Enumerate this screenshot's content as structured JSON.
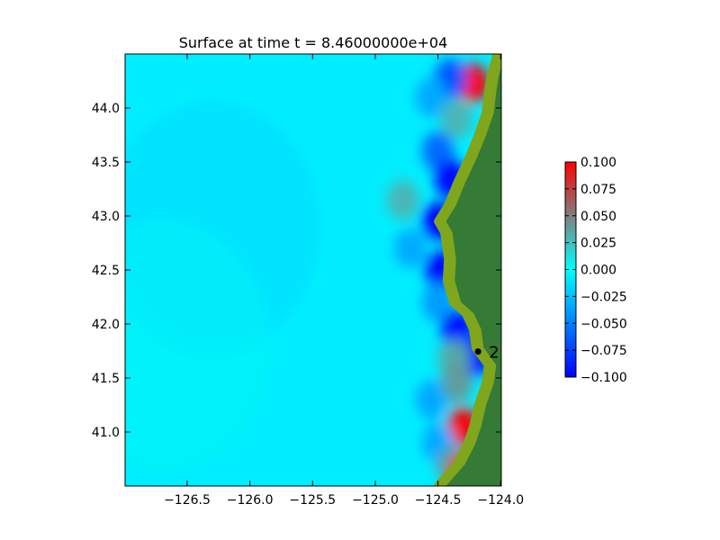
{
  "chart_data": {
    "type": "heatmap",
    "title": "Surface at time t = 8.46000000e+04",
    "xlabel": "",
    "ylabel": "",
    "xlim": [
      -126.995,
      -123.995
    ],
    "ylim": [
      40.5,
      44.5
    ],
    "x_ticks": [
      {
        "value": -126.5,
        "label": "−126.5"
      },
      {
        "value": -126.0,
        "label": "−126.0"
      },
      {
        "value": -125.5,
        "label": "−125.5"
      },
      {
        "value": -125.0,
        "label": "−125.0"
      },
      {
        "value": -124.5,
        "label": "−124.5"
      },
      {
        "value": -124.0,
        "label": "−124.0"
      }
    ],
    "y_ticks": [
      {
        "value": 41.0,
        "label": "41.0"
      },
      {
        "value": 41.5,
        "label": "41.5"
      },
      {
        "value": 42.0,
        "label": "42.0"
      },
      {
        "value": 42.5,
        "label": "42.5"
      },
      {
        "value": 43.0,
        "label": "43.0"
      },
      {
        "value": 43.5,
        "label": "43.5"
      },
      {
        "value": 44.0,
        "label": "44.0"
      }
    ],
    "colorbar": {
      "min": -0.1,
      "max": 0.1,
      "ticks": [
        {
          "value": 0.1,
          "label": "0.100"
        },
        {
          "value": 0.075,
          "label": "0.075"
        },
        {
          "value": 0.05,
          "label": "0.050"
        },
        {
          "value": 0.025,
          "label": "0.025"
        },
        {
          "value": 0.0,
          "label": "0.000"
        },
        {
          "value": -0.025,
          "label": "−0.025"
        },
        {
          "value": -0.05,
          "label": "−0.050"
        },
        {
          "value": -0.075,
          "label": "−0.075"
        },
        {
          "value": -0.1,
          "label": "−0.100"
        }
      ],
      "colors": [
        "#0000ff",
        "#00ffff",
        "#ff0000"
      ]
    },
    "colors": {
      "land": "#357a35",
      "shore": "#7fa61c",
      "water_base": "#00f0ff",
      "marker": "#000000"
    },
    "coastline": [
      [
        -124.5,
        40.5
      ],
      [
        -124.35,
        40.7
      ],
      [
        -124.27,
        40.88
      ],
      [
        -124.22,
        41.05
      ],
      [
        -124.18,
        41.25
      ],
      [
        -124.12,
        41.45
      ],
      [
        -124.1,
        41.62
      ],
      [
        -124.2,
        41.78
      ],
      [
        -124.22,
        41.95
      ],
      [
        -124.28,
        42.1
      ],
      [
        -124.38,
        42.2
      ],
      [
        -124.43,
        42.4
      ],
      [
        -124.42,
        42.6
      ],
      [
        -124.45,
        42.85
      ],
      [
        -124.5,
        42.95
      ],
      [
        -124.42,
        43.1
      ],
      [
        -124.35,
        43.3
      ],
      [
        -124.25,
        43.55
      ],
      [
        -124.18,
        43.75
      ],
      [
        -124.12,
        43.95
      ],
      [
        -124.1,
        44.15
      ],
      [
        -124.08,
        44.3
      ],
      [
        -124.03,
        44.5
      ]
    ],
    "features": [
      {
        "lon": -124.22,
        "lat": 44.23,
        "value": 0.1
      },
      {
        "lon": -124.4,
        "lat": 44.27,
        "value": -0.07
      },
      {
        "lon": -124.55,
        "lat": 44.1,
        "value": -0.035
      },
      {
        "lon": -124.35,
        "lat": 43.9,
        "value": 0.03
      },
      {
        "lon": -124.5,
        "lat": 43.6,
        "value": -0.06
      },
      {
        "lon": -124.4,
        "lat": 43.35,
        "value": -0.1
      },
      {
        "lon": -124.78,
        "lat": 43.15,
        "value": 0.03
      },
      {
        "lon": -124.5,
        "lat": 42.95,
        "value": -0.1
      },
      {
        "lon": -124.72,
        "lat": 42.7,
        "value": -0.035
      },
      {
        "lon": -124.48,
        "lat": 42.5,
        "value": -0.1
      },
      {
        "lon": -124.5,
        "lat": 42.2,
        "value": -0.04
      },
      {
        "lon": -124.35,
        "lat": 41.95,
        "value": -0.1
      },
      {
        "lon": -124.2,
        "lat": 41.7,
        "value": -0.1
      },
      {
        "lon": -124.37,
        "lat": 41.68,
        "value": 0.035
      },
      {
        "lon": -124.35,
        "lat": 41.45,
        "value": 0.04
      },
      {
        "lon": -124.55,
        "lat": 41.3,
        "value": -0.035
      },
      {
        "lon": -124.3,
        "lat": 41.05,
        "value": 0.1
      },
      {
        "lon": -124.5,
        "lat": 40.9,
        "value": -0.035
      },
      {
        "lon": -124.38,
        "lat": 40.68,
        "value": 0.04
      },
      {
        "lon": -124.28,
        "lat": 40.62,
        "value": 0.1
      },
      {
        "lon": -126.3,
        "lat": 42.9,
        "value": -0.015
      },
      {
        "lon": -126.7,
        "lat": 41.8,
        "value": 0.004
      }
    ],
    "gauges": [
      {
        "label": "2",
        "lon": -124.18,
        "lat": 41.745
      }
    ]
  }
}
